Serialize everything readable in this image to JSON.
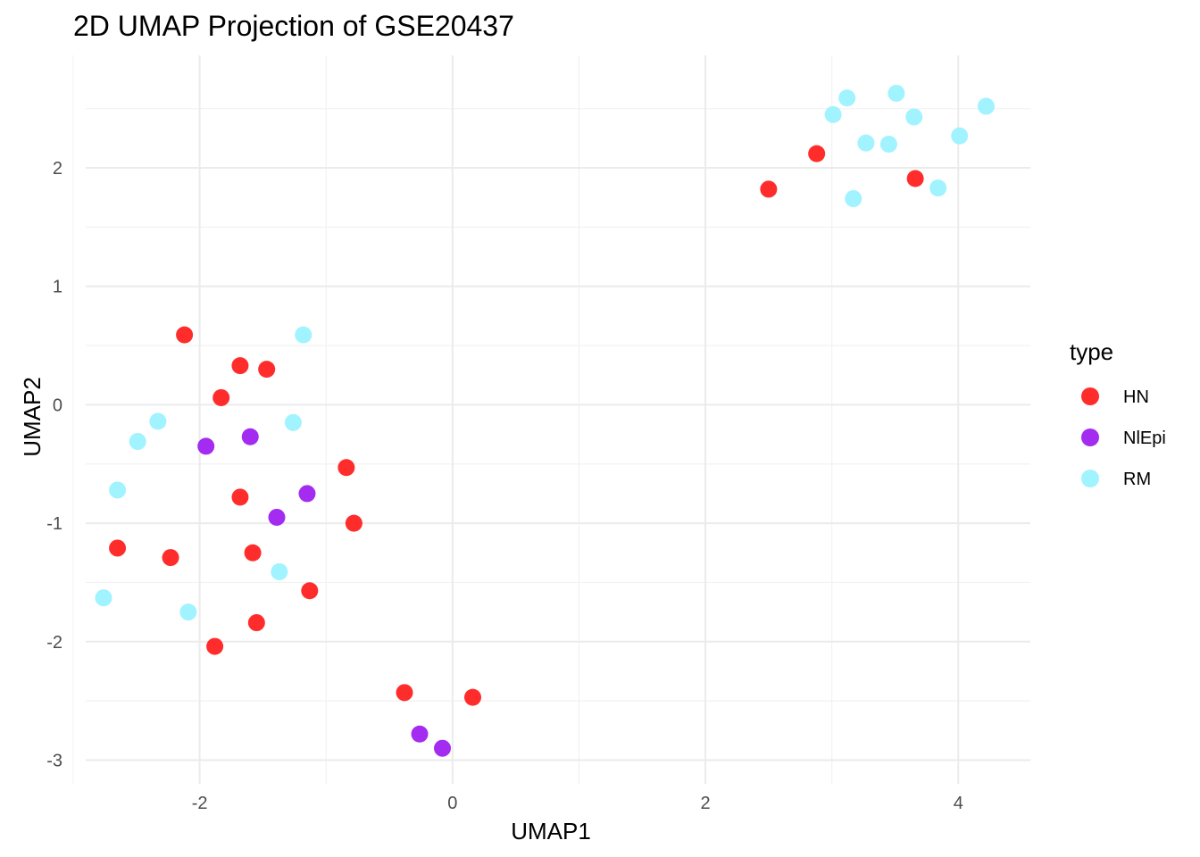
{
  "chart_data": {
    "type": "scatter",
    "title": "2D UMAP Projection of GSE20437",
    "xlabel": "UMAP1",
    "ylabel": "UMAP2",
    "xlim": [
      -3.0,
      4.57
    ],
    "ylim": [
      -3.2,
      2.95
    ],
    "x_ticks": [
      -2,
      0,
      2,
      4
    ],
    "y_ticks": [
      -3,
      -2,
      -1,
      0,
      1,
      2
    ],
    "x_tick_labels": [
      "-2",
      "0",
      "2",
      "4"
    ],
    "y_tick_labels": [
      "-3",
      "-2",
      "-1",
      "0",
      "1",
      "2"
    ],
    "grid": true,
    "legend": {
      "title": "type",
      "position": "right",
      "entries": [
        {
          "label": "HN",
          "color": "#FF1A1A"
        },
        {
          "label": "NlEpi",
          "color": "#9B1AEF"
        },
        {
          "label": "RM",
          "color": "#99F2FF"
        }
      ]
    },
    "series": [
      {
        "name": "HN",
        "color": "#FF1A1A",
        "points": [
          [
            2.5,
            1.82
          ],
          [
            2.88,
            2.12
          ],
          [
            3.66,
            1.91
          ],
          [
            -2.12,
            0.59
          ],
          [
            -1.68,
            0.33
          ],
          [
            -1.47,
            0.3
          ],
          [
            -1.83,
            0.06
          ],
          [
            -0.84,
            -0.53
          ],
          [
            -1.68,
            -0.78
          ],
          [
            -0.78,
            -1.0
          ],
          [
            -2.65,
            -1.21
          ],
          [
            -2.23,
            -1.29
          ],
          [
            -1.58,
            -1.25
          ],
          [
            -1.13,
            -1.57
          ],
          [
            -1.55,
            -1.84
          ],
          [
            -1.88,
            -2.04
          ],
          [
            -0.38,
            -2.43
          ],
          [
            0.16,
            -2.47
          ]
        ]
      },
      {
        "name": "NlEpi",
        "color": "#9B1AEF",
        "points": [
          [
            -1.95,
            -0.35
          ],
          [
            -1.6,
            -0.27
          ],
          [
            -1.15,
            -0.75
          ],
          [
            -1.39,
            -0.95
          ],
          [
            -0.26,
            -2.78
          ],
          [
            -0.08,
            -2.9
          ]
        ]
      },
      {
        "name": "RM",
        "color": "#99F2FF",
        "points": [
          [
            3.12,
            2.59
          ],
          [
            3.51,
            2.63
          ],
          [
            3.01,
            2.45
          ],
          [
            3.65,
            2.43
          ],
          [
            4.22,
            2.52
          ],
          [
            3.27,
            2.21
          ],
          [
            3.45,
            2.2
          ],
          [
            4.01,
            2.27
          ],
          [
            3.84,
            1.83
          ],
          [
            3.17,
            1.74
          ],
          [
            -1.18,
            0.59
          ],
          [
            -2.33,
            -0.14
          ],
          [
            -1.26,
            -0.15
          ],
          [
            -2.49,
            -0.31
          ],
          [
            -2.65,
            -0.72
          ],
          [
            -1.37,
            -1.41
          ],
          [
            -2.76,
            -1.63
          ],
          [
            -2.09,
            -1.75
          ]
        ]
      }
    ]
  }
}
